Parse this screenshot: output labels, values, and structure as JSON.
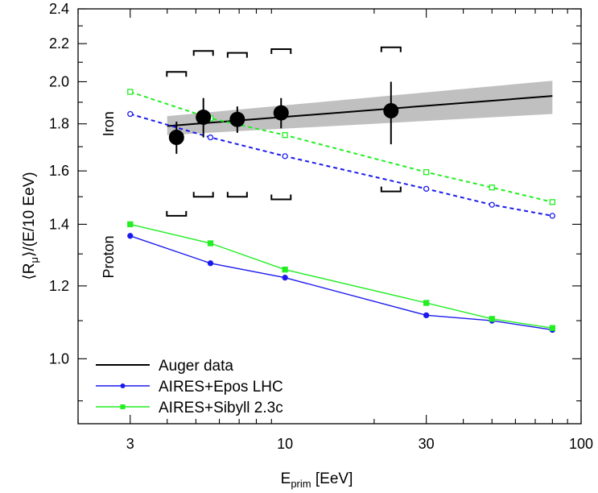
{
  "chart_data": {
    "type": "scatter",
    "x_scale": "log",
    "y_scale": "log",
    "xlim": [
      2,
      100
    ],
    "ylim": [
      0.85,
      2.4
    ],
    "grid": false,
    "legend_position": "bottom-left",
    "xlabel": {
      "main": "E",
      "sub": "prim",
      "unit": " [EeV]"
    },
    "ylabel": {
      "prefix": "⟨R",
      "sub": "μ",
      "suffix": "⟩/(E/10 EeV)"
    },
    "x_ticks": [
      3,
      10,
      30,
      100
    ],
    "x_tick_labels": [
      "3",
      "10",
      "30",
      "100"
    ],
    "y_ticks": [
      1.0,
      1.2,
      1.4,
      1.6,
      1.8,
      2.0,
      2.2,
      2.4
    ],
    "y_tick_labels": [
      "1.0",
      "1.2",
      "1.4",
      "1.6",
      "1.8",
      "2.0",
      "2.2",
      "2.4"
    ],
    "annotations": {
      "iron": "Iron",
      "proton": "Proton"
    },
    "colors": {
      "auger": "#000000",
      "epos": "#1a1aee",
      "sibyll": "#22ee22",
      "band": "#c0c0c0"
    },
    "series": [
      {
        "name": "Auger data",
        "kind": "data",
        "points": [
          {
            "x": 4.3,
            "y": 1.74,
            "yerr": [
              0.07,
              0.07
            ]
          },
          {
            "x": 5.3,
            "y": 1.83,
            "yerr": [
              0.09,
              0.09
            ]
          },
          {
            "x": 6.9,
            "y": 1.82,
            "yerr": [
              0.06,
              0.06
            ]
          },
          {
            "x": 9.7,
            "y": 1.85,
            "yerr": [
              0.07,
              0.07
            ]
          },
          {
            "x": 22.8,
            "y": 1.86,
            "yerr": [
              0.15,
              0.14
            ]
          }
        ],
        "fit": {
          "x": [
            4.0,
            80.0
          ],
          "y": [
            1.79,
            1.93
          ]
        },
        "fit_band": {
          "x": [
            4.0,
            80.0
          ],
          "lower": [
            1.75,
            1.845
          ],
          "upper": [
            1.835,
            2.005
          ]
        },
        "systematics": [
          {
            "x": 4.3,
            "upper": 2.05,
            "lower": 1.43
          },
          {
            "x": 5.3,
            "upper": 2.16,
            "lower": 1.5
          },
          {
            "x": 6.9,
            "upper": 2.15,
            "lower": 1.5
          },
          {
            "x": 9.7,
            "upper": 2.17,
            "lower": 1.49
          },
          {
            "x": 22.8,
            "upper": 2.18,
            "lower": 1.52
          }
        ]
      },
      {
        "name": "AIRES+Epos LHC",
        "kind": "iron",
        "x": [
          3,
          5.6,
          10,
          30,
          50,
          80
        ],
        "values": [
          1.845,
          1.74,
          1.66,
          1.53,
          1.47,
          1.43
        ]
      },
      {
        "name": "AIRES+Sibyll 2.3c",
        "kind": "iron",
        "x": [
          3,
          5.6,
          10,
          30,
          50,
          80
        ],
        "values": [
          1.95,
          1.825,
          1.75,
          1.595,
          1.535,
          1.48
        ]
      },
      {
        "name": "AIRES+Epos LHC",
        "kind": "proton",
        "x": [
          3,
          5.6,
          10,
          30,
          50,
          80
        ],
        "values": [
          1.36,
          1.27,
          1.225,
          1.115,
          1.1,
          1.075
        ]
      },
      {
        "name": "AIRES+Sibyll 2.3c",
        "kind": "proton",
        "x": [
          3,
          5.6,
          10,
          30,
          50,
          80
        ],
        "values": [
          1.4,
          1.335,
          1.25,
          1.15,
          1.105,
          1.08
        ]
      }
    ],
    "legend": [
      {
        "label": "Auger data",
        "style": "auger"
      },
      {
        "label": "AIRES+Epos LHC",
        "style": "epos"
      },
      {
        "label": "AIRES+Sibyll 2.3c",
        "style": "sibyll"
      }
    ]
  }
}
